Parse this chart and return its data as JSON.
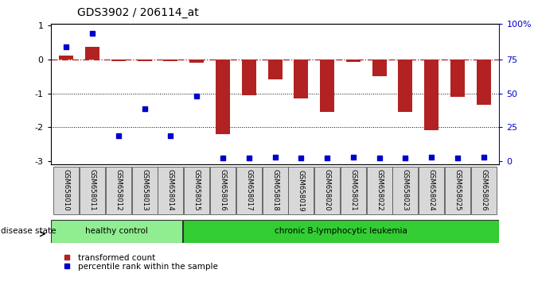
{
  "title": "GDS3902 / 206114_at",
  "samples": [
    "GSM658010",
    "GSM658011",
    "GSM658012",
    "GSM658013",
    "GSM658014",
    "GSM658015",
    "GSM658016",
    "GSM658017",
    "GSM658018",
    "GSM658019",
    "GSM658020",
    "GSM658021",
    "GSM658022",
    "GSM658023",
    "GSM658024",
    "GSM658025",
    "GSM658026"
  ],
  "bar_values": [
    0.12,
    0.38,
    -0.05,
    -0.05,
    -0.05,
    -0.1,
    -2.2,
    -1.05,
    -0.6,
    -1.15,
    -1.55,
    -0.08,
    -0.5,
    -1.55,
    -2.1,
    -1.1,
    -1.35
  ],
  "percentile_values": [
    0.38,
    0.78,
    -2.25,
    -1.45,
    -2.25,
    -1.08,
    -2.9,
    -2.9,
    -2.88,
    -2.9,
    -2.9,
    -2.88,
    -2.9,
    -2.9,
    -2.88,
    -2.9,
    -2.88
  ],
  "bar_color": "#b22222",
  "percentile_color": "#0000cc",
  "zero_line_color": "#b22222",
  "groups": [
    {
      "label": "healthy control",
      "start": 0,
      "end": 5,
      "color": "#90ee90"
    },
    {
      "label": "chronic B-lymphocytic leukemia",
      "start": 5,
      "end": 17,
      "color": "#32cd32"
    }
  ],
  "disease_state_label": "disease state",
  "ylim": [
    -3.1,
    1.05
  ],
  "yticks": [
    1,
    0,
    -1,
    -2,
    -3
  ],
  "right_tick_positions": [
    1.05,
    0.0,
    -1.0,
    -2.0,
    -3.0
  ],
  "right_ytick_labels": [
    "100%",
    "75",
    "50",
    "25",
    "0"
  ],
  "background_color": "#ffffff",
  "legend_items": [
    "transformed count",
    "percentile rank within the sample"
  ]
}
